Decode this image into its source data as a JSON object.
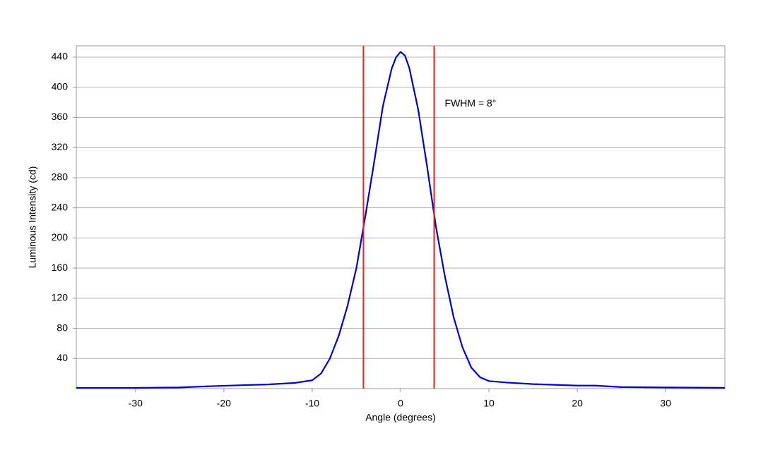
{
  "chart_data": {
    "type": "line",
    "x_label": "Angle (degrees)",
    "y_label": "Luminous Intensity (cd)",
    "xlim": [
      -36.7,
      36.7
    ],
    "ylim": [
      0,
      455
    ],
    "xticks": [
      -30,
      -20,
      -10,
      0,
      10,
      20,
      30
    ],
    "yticks": [
      40,
      80,
      120,
      160,
      200,
      240,
      280,
      320,
      360,
      400,
      440
    ],
    "grid": true,
    "x": [
      -36.7,
      -30,
      -25,
      -22,
      -18,
      -15,
      -12,
      -10,
      -9,
      -8,
      -7,
      -6,
      -5,
      -4,
      -3,
      -2,
      -1,
      -0.5,
      0,
      0.5,
      1,
      2,
      3,
      4,
      5,
      6,
      7,
      8,
      9,
      10,
      12,
      15,
      20,
      22,
      25,
      30,
      36.7
    ],
    "series": [
      {
        "color": "#0000cc",
        "values": [
          1,
          1,
          1.5,
          3,
          4.5,
          5.5,
          7.5,
          11,
          20,
          40,
          70,
          110,
          160,
          228,
          300,
          375,
          425,
          440,
          447,
          442,
          425,
          370,
          295,
          215,
          150,
          95,
          55,
          28,
          15,
          10,
          8,
          6,
          4,
          4,
          2,
          1.5,
          1
        ]
      }
    ],
    "vlines": {
      "color": "#e8201c",
      "values": [
        -4.2,
        3.8
      ]
    },
    "annotation": {
      "text": "FWHM = 8°",
      "x": 5,
      "y": 378
    }
  }
}
